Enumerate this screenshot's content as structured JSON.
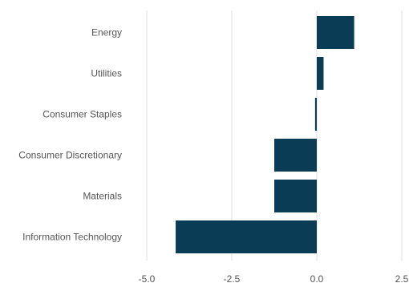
{
  "chart_data": {
    "type": "bar",
    "orientation": "horizontal",
    "title": "",
    "xlabel": "",
    "ylabel": "",
    "categories": [
      "Energy",
      "Utilities",
      "Consumer Staples",
      "Consumer Discretionary",
      "Materials",
      "Information Technology"
    ],
    "values": [
      1.1,
      0.2,
      -0.05,
      -1.25,
      -1.25,
      -4.15
    ],
    "xlim": [
      -5.0,
      2.5
    ],
    "xticks": [
      "-5.0",
      "-2.5",
      "0.0",
      "2.5"
    ],
    "grid": "vertical",
    "legend": "none",
    "bar_color": "#0a3d55",
    "grid_color": "#dddddd"
  }
}
